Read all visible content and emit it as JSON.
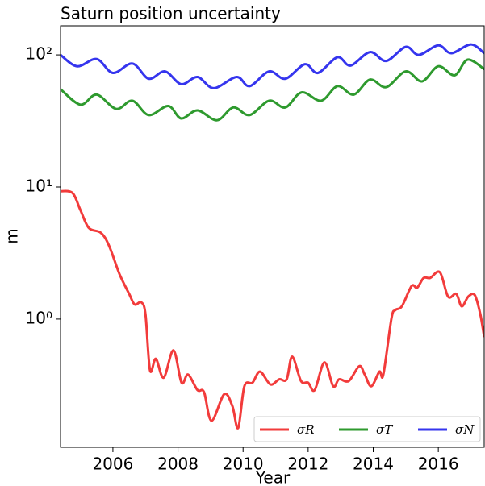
{
  "chart_data": {
    "type": "line",
    "title": "Saturn position uncertainty",
    "x_label": "Year",
    "y_label": "m",
    "log_y": true,
    "legend": "lower right",
    "xlim": [
      2004.39,
      2017.41
    ],
    "ylim": [
      0.107,
      166
    ],
    "xticks": [
      2006,
      2008,
      2010,
      2012,
      2014,
      2016
    ],
    "yticks": [
      {
        "value": 1,
        "label": "10⁰"
      },
      {
        "value": 10,
        "label": "10¹"
      },
      {
        "value": 100,
        "label": "10²"
      }
    ],
    "series": [
      {
        "name": "σR",
        "color": "#f23b3b",
        "x": [
          2004.39,
          2004.76,
          2005.0,
          2005.26,
          2005.63,
          2005.88,
          2006.2,
          2006.5,
          2006.67,
          2006.87,
          2007.0,
          2007.14,
          2007.32,
          2007.56,
          2007.86,
          2008.11,
          2008.31,
          2008.6,
          2008.8,
          2009.03,
          2009.42,
          2009.67,
          2009.85,
          2010.04,
          2010.29,
          2010.52,
          2010.84,
          2011.11,
          2011.34,
          2011.51,
          2011.78,
          2012.0,
          2012.2,
          2012.5,
          2012.77,
          2012.95,
          2013.25,
          2013.57,
          2013.74,
          2013.94,
          2014.19,
          2014.31,
          2014.56,
          2014.68,
          2014.88,
          2015.18,
          2015.35,
          2015.55,
          2015.75,
          2016.05,
          2016.3,
          2016.55,
          2016.72,
          2016.92,
          2017.12,
          2017.29,
          2017.41
        ],
        "values": [
          9.3,
          9,
          6.7,
          4.9,
          4.5,
          3.6,
          2.2,
          1.55,
          1.29,
          1.34,
          1.09,
          0.41,
          0.5,
          0.36,
          0.58,
          0.33,
          0.38,
          0.29,
          0.28,
          0.17,
          0.27,
          0.22,
          0.15,
          0.31,
          0.33,
          0.4,
          0.32,
          0.35,
          0.35,
          0.52,
          0.34,
          0.33,
          0.29,
          0.47,
          0.31,
          0.35,
          0.34,
          0.44,
          0.38,
          0.31,
          0.4,
          0.38,
          1.01,
          1.17,
          1.25,
          1.78,
          1.73,
          2.05,
          2.05,
          2.26,
          1.48,
          1.55,
          1.25,
          1.48,
          1.52,
          1.09,
          0.73
        ]
      },
      {
        "name": "σT",
        "color": "#2e9a2e",
        "x": [
          2004.39,
          2005.0,
          2005.5,
          2006.1,
          2006.6,
          2007.1,
          2007.7,
          2008.1,
          2008.6,
          2009.2,
          2009.7,
          2010.2,
          2010.8,
          2011.3,
          2011.8,
          2012.4,
          2012.9,
          2013.4,
          2013.9,
          2014.4,
          2015.0,
          2015.5,
          2016.0,
          2016.5,
          2016.9,
          2017.41
        ],
        "values": [
          55,
          42,
          50,
          39,
          45,
          35,
          41,
          33,
          38,
          32,
          40,
          35,
          45,
          40,
          52,
          45,
          58,
          50,
          65,
          57,
          75,
          63,
          82,
          70,
          92,
          78
        ]
      },
      {
        "name": "σN",
        "color": "#3535ee",
        "x": [
          2004.39,
          2004.9,
          2005.5,
          2006.0,
          2006.6,
          2007.1,
          2007.6,
          2008.1,
          2008.6,
          2009.1,
          2009.8,
          2010.2,
          2010.8,
          2011.3,
          2011.9,
          2012.3,
          2012.9,
          2013.3,
          2013.9,
          2014.4,
          2015.0,
          2015.4,
          2016.0,
          2016.4,
          2017.0,
          2017.41
        ],
        "values": [
          100,
          82,
          93,
          73,
          86,
          66,
          75,
          60,
          68,
          56,
          68,
          58,
          75,
          66,
          85,
          73,
          96,
          83,
          105,
          90,
          115,
          100,
          118,
          103,
          120,
          103
        ]
      }
    ]
  }
}
